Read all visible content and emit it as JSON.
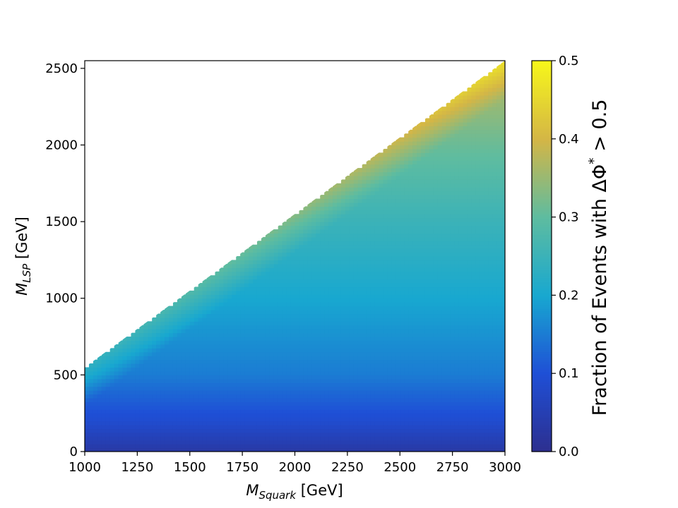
{
  "chart_data": {
    "type": "heatmap",
    "title": "",
    "xlabel": {
      "main": "M",
      "sub": "Squark",
      "unit": " [GeV]"
    },
    "ylabel": {
      "main": "M",
      "sub": "LSP",
      "unit": " [GeV]"
    },
    "xlim": [
      1000,
      3000
    ],
    "ylim": [
      0,
      2550
    ],
    "x_ticks": [
      "1000",
      "1250",
      "1500",
      "1750",
      "2000",
      "2250",
      "2500",
      "2750",
      "3000"
    ],
    "y_ticks": [
      "0",
      "500",
      "1000",
      "1500",
      "2000",
      "2500"
    ],
    "x_tick_values": [
      1000,
      1250,
      1500,
      1750,
      2000,
      2250,
      2500,
      2750,
      3000
    ],
    "y_tick_values": [
      0,
      500,
      1000,
      1500,
      2000,
      2500
    ],
    "valid_region": {
      "upper_edge_start": [
        1000,
        550
      ],
      "upper_edge_end": [
        3000,
        2550
      ]
    },
    "colorbar": {
      "label_prefix": "Fraction of Events with ΔΦ",
      "label_sup": "*",
      "label_suffix": " > 0.5",
      "range": [
        0.0,
        0.5
      ],
      "ticks": [
        "0.0",
        "0.1",
        "0.2",
        "0.3",
        "0.4",
        "0.5"
      ],
      "tick_values": [
        0.0,
        0.1,
        0.2,
        0.3,
        0.4,
        0.5
      ],
      "colors": [
        "#2d2f8f",
        "#1f4fd6",
        "#18a8d0",
        "#5ebca0",
        "#d4b646",
        "#f7f71a"
      ]
    },
    "grid": false,
    "value_model": {
      "description_points": [
        {
          "m_lsp": 0,
          "fraction": 0.03
        },
        {
          "m_lsp": 200,
          "fraction": 0.09
        },
        {
          "m_lsp": 500,
          "fraction": 0.15
        },
        {
          "m_lsp": 1000,
          "fraction": 0.2
        },
        {
          "m_lsp": 1500,
          "fraction": 0.25
        },
        {
          "m_lsp": 2000,
          "fraction": 0.31
        },
        {
          "m_lsp": 2500,
          "fraction": 0.38
        }
      ],
      "near_diagonal_boost": 0.08
    }
  }
}
